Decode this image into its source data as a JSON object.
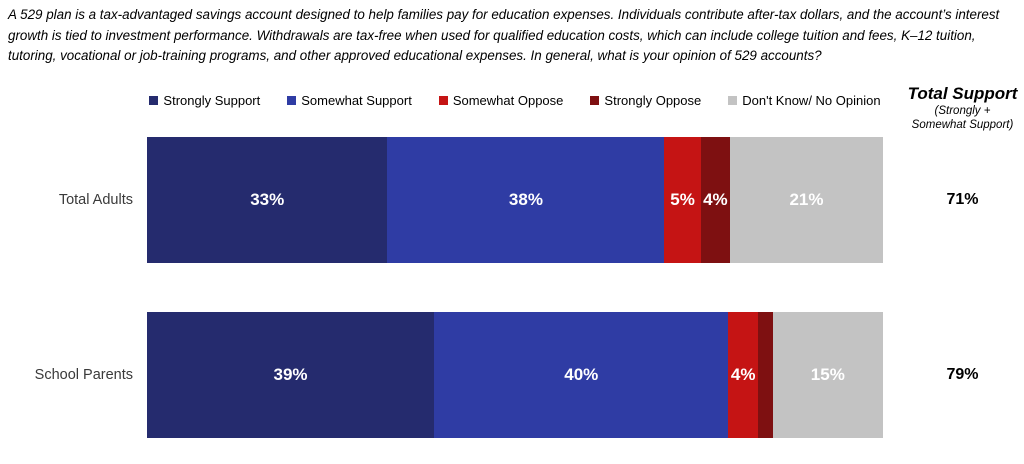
{
  "header": {
    "text": "A 529 plan is a tax-advantaged savings account designed to help families pay for education expenses. Individuals contribute after-tax dollars, and the account’s interest growth is tied to investment performance. Withdrawals are tax-free when used for qualified education costs, which can include college tuition and fees, K–12 tuition, tutoring, vocational or job-training programs, and other approved educational expenses. In general, what is your opinion of 529 accounts?"
  },
  "total_support_header": {
    "title": "Total Support",
    "subtitle_line1": "(Strongly +",
    "subtitle_line2": "Somewhat Support)"
  },
  "colors": {
    "strongly_support": "#252b6e",
    "somewhat_support": "#2f3ca4",
    "somewhat_oppose": "#c51414",
    "strongly_oppose": "#7e1011",
    "dont_know": "#c3c3c3",
    "bar_label_text": "#ffffff"
  },
  "chart_data": {
    "type": "bar",
    "orientation": "horizontal_stacked",
    "title": "",
    "legend_position": "top",
    "categories": [
      "Total Adults",
      "School Parents"
    ],
    "series": [
      {
        "name": "Strongly Support",
        "color": "#252b6e",
        "values": [
          33,
          39
        ]
      },
      {
        "name": "Somewhat Support",
        "color": "#2f3ca4",
        "values": [
          38,
          40
        ]
      },
      {
        "name": "Somewhat Oppose",
        "color": "#c51414",
        "values": [
          5,
          4
        ]
      },
      {
        "name": "Strongly Oppose",
        "color": "#7e1011",
        "values": [
          4,
          2
        ]
      },
      {
        "name": "Don't Know/ No Opinion",
        "color": "#c3c3c3",
        "values": [
          21,
          15
        ]
      }
    ],
    "data_labels": [
      [
        "33%",
        "38%",
        "5%",
        "4%",
        "21%"
      ],
      [
        "39%",
        "40%",
        "4%",
        "",
        "15%"
      ]
    ],
    "totals": {
      "name": "Total Support (Strongly + Somewhat Support)",
      "label_values": [
        "71%",
        "79%"
      ]
    }
  }
}
